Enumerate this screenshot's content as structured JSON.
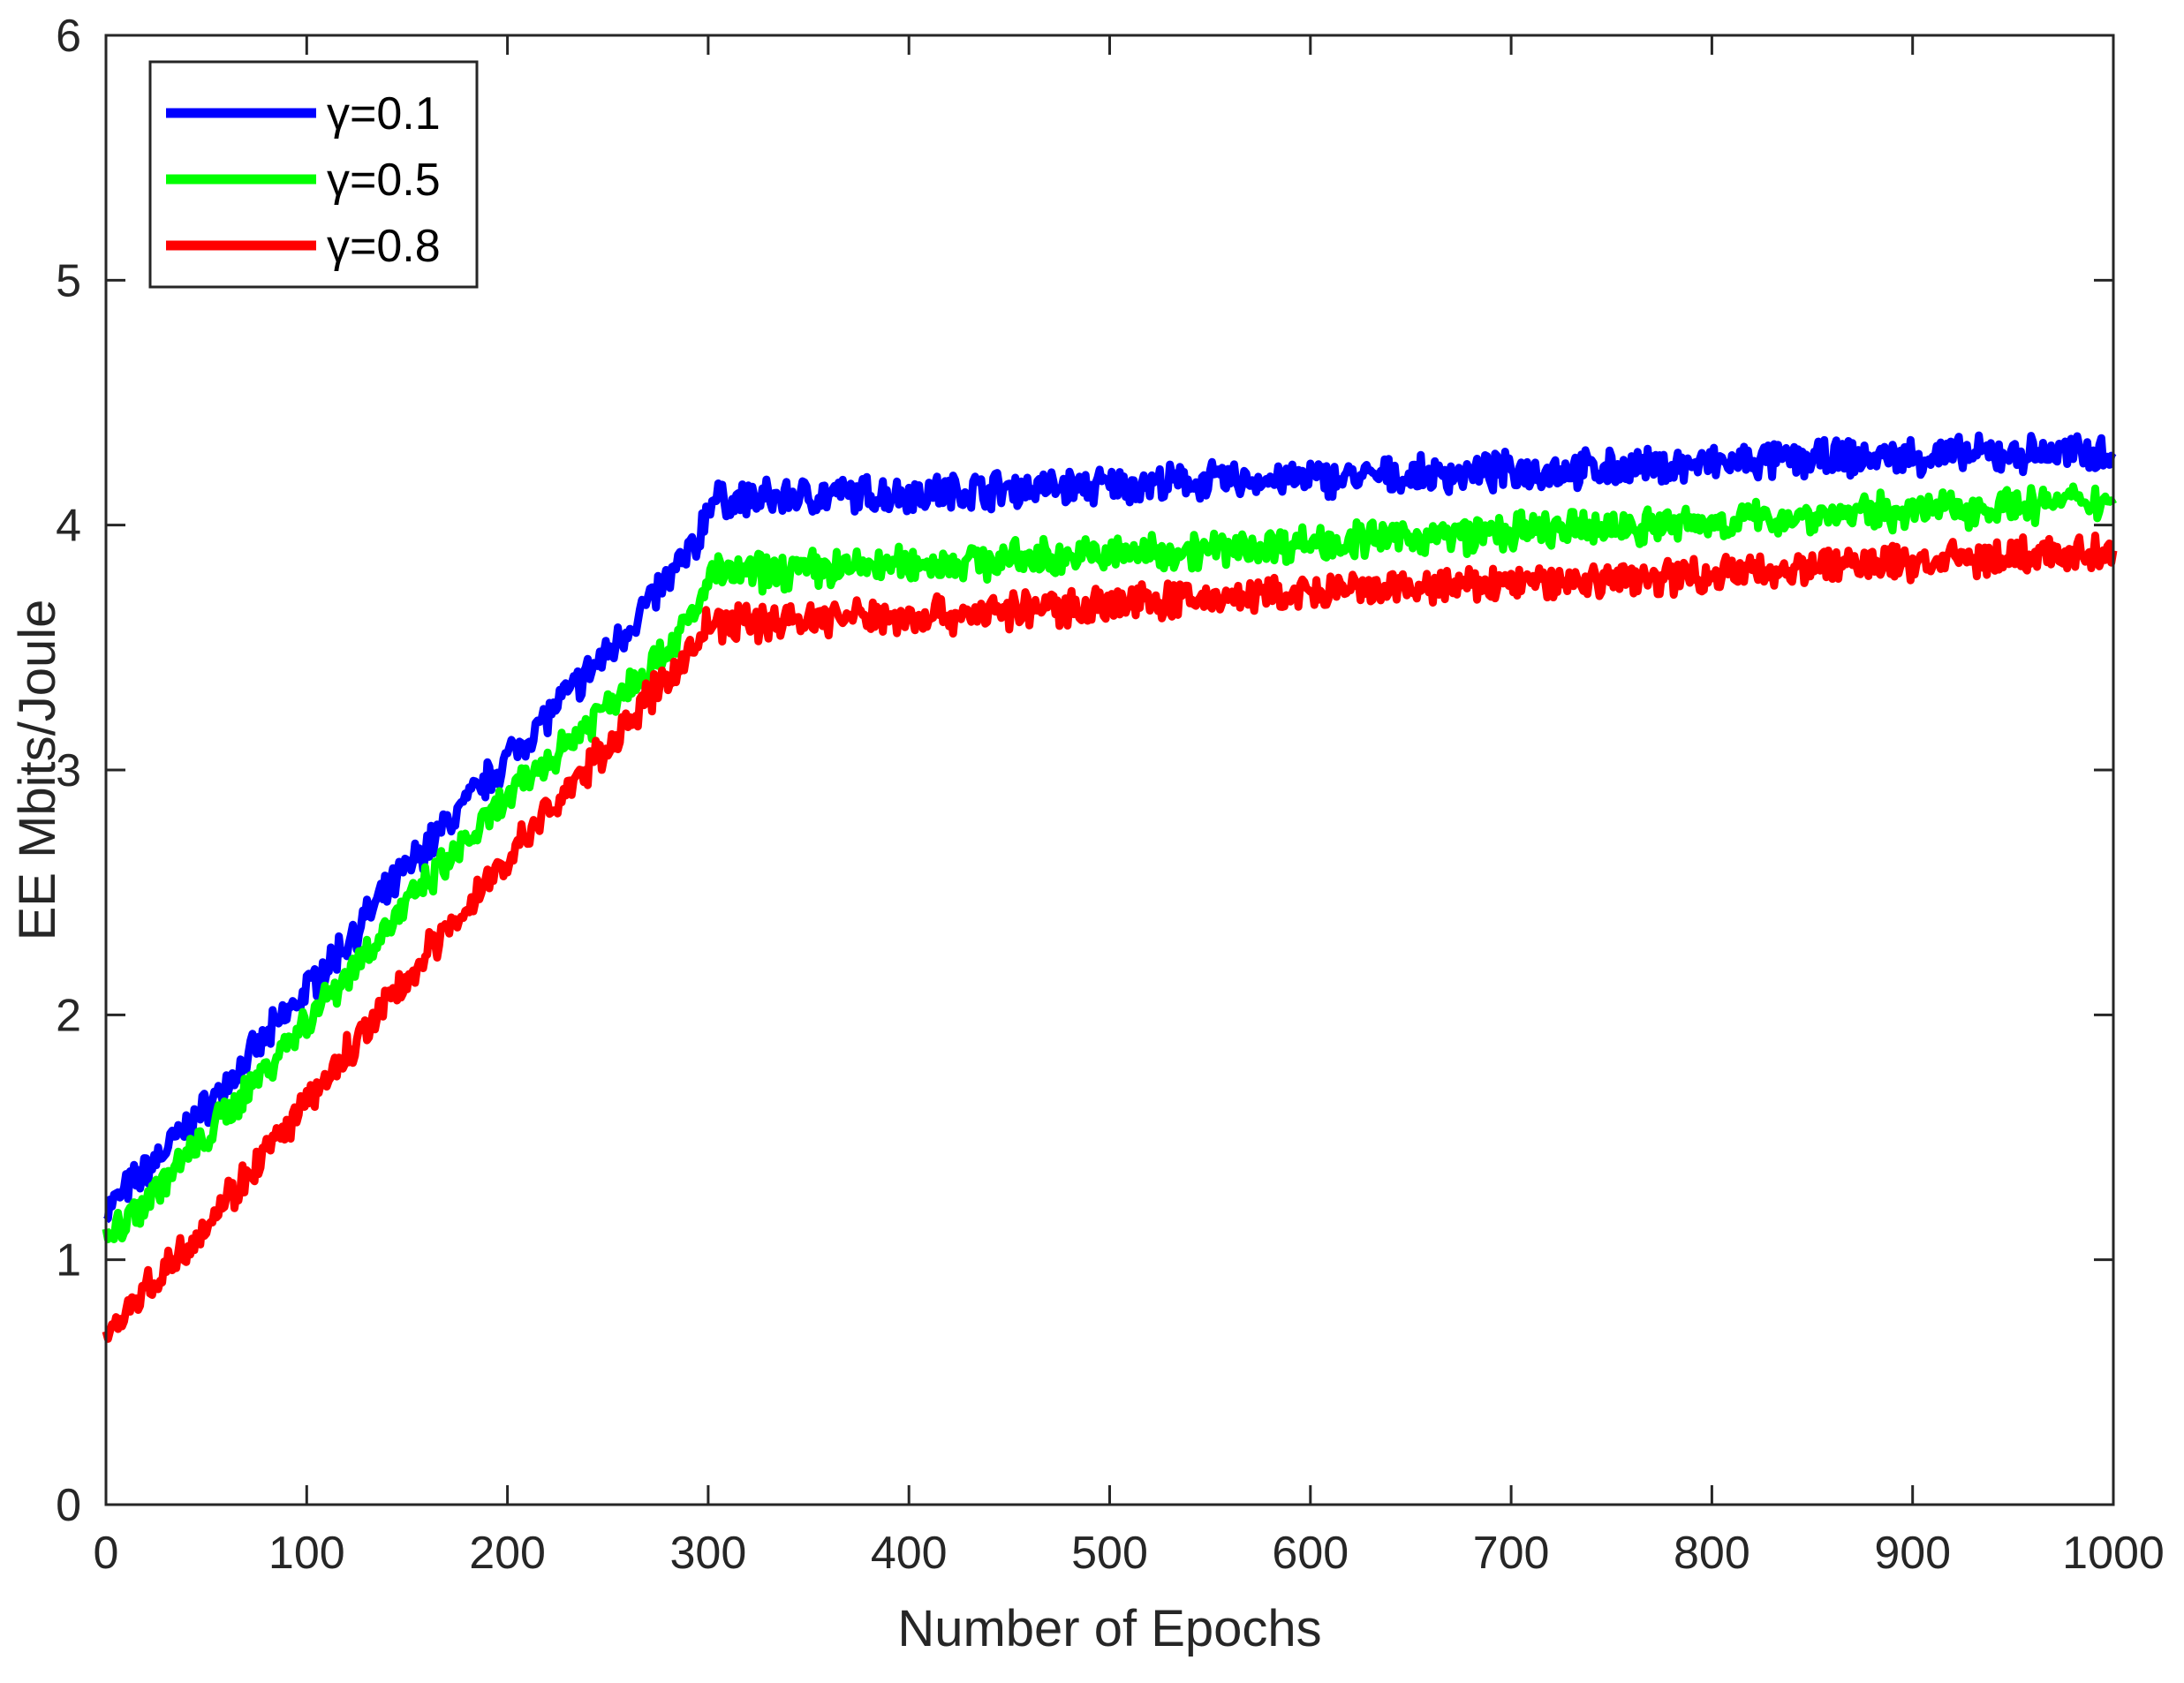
{
  "chart_data": {
    "type": "line",
    "title": "",
    "xlabel": "Number of Epochs",
    "ylabel": "EE Mbits/Joule",
    "xlim": [
      0,
      1000
    ],
    "ylim": [
      0,
      6
    ],
    "xticks": [
      0,
      100,
      200,
      300,
      400,
      500,
      600,
      700,
      800,
      900,
      1000
    ],
    "yticks": [
      0,
      1,
      2,
      3,
      4,
      5,
      6
    ],
    "grid": false,
    "legend_position": "top-left",
    "series": [
      {
        "name": "γ=0.1",
        "color": "#0000ff",
        "x": [
          0,
          50,
          100,
          150,
          200,
          250,
          280,
          295,
          300,
          310,
          350,
          400,
          450,
          500,
          550,
          600,
          650,
          700,
          750,
          800,
          850,
          900,
          950,
          1000
        ],
        "y": [
          1.2,
          1.62,
          2.1,
          2.6,
          3.05,
          3.48,
          3.78,
          3.93,
          4.1,
          4.1,
          4.12,
          4.13,
          4.15,
          4.16,
          4.18,
          4.19,
          4.2,
          4.22,
          4.23,
          4.25,
          4.27,
          4.28,
          4.29,
          4.3
        ]
      },
      {
        "name": "γ=0.5",
        "color": "#00ff00",
        "x": [
          0,
          50,
          100,
          150,
          200,
          250,
          280,
          295,
          300,
          310,
          350,
          400,
          450,
          500,
          550,
          600,
          650,
          700,
          750,
          800,
          850,
          900,
          950,
          1000
        ],
        "y": [
          1.08,
          1.5,
          1.98,
          2.45,
          2.88,
          3.27,
          3.5,
          3.65,
          3.8,
          3.8,
          3.82,
          3.84,
          3.86,
          3.88,
          3.9,
          3.93,
          3.95,
          3.97,
          3.99,
          4.01,
          4.04,
          4.06,
          4.08,
          4.1
        ]
      },
      {
        "name": "γ=0.8",
        "color": "#ff0000",
        "x": [
          0,
          50,
          100,
          150,
          200,
          250,
          280,
          295,
          300,
          310,
          350,
          400,
          450,
          500,
          550,
          600,
          650,
          700,
          750,
          800,
          850,
          900,
          950,
          1000
        ],
        "y": [
          0.7,
          1.15,
          1.63,
          2.15,
          2.64,
          3.1,
          3.38,
          3.52,
          3.6,
          3.6,
          3.62,
          3.63,
          3.65,
          3.68,
          3.7,
          3.72,
          3.74,
          3.76,
          3.78,
          3.8,
          3.83,
          3.85,
          3.87,
          3.89
        ]
      }
    ]
  }
}
